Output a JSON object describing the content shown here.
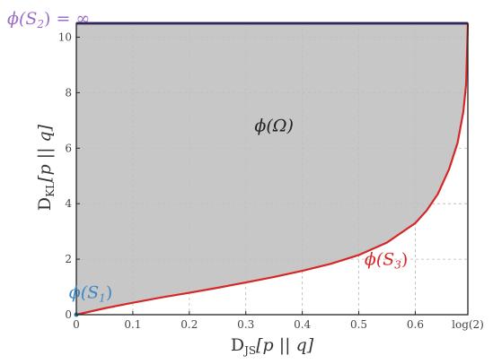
{
  "chart_data": {
    "type": "area",
    "title": "",
    "xlabel": {
      "main": "D",
      "sub": "JS",
      "rest": "[p || q]"
    },
    "ylabel": {
      "main": "D",
      "sub": "KL",
      "rest": "[p || q]"
    },
    "xlim": [
      0,
      0.6931
    ],
    "ylim": [
      0,
      10.5
    ],
    "grid": true,
    "x_ticks": [
      {
        "value": 0,
        "label": "0"
      },
      {
        "value": 0.1,
        "label": "0.1"
      },
      {
        "value": 0.2,
        "label": "0.2"
      },
      {
        "value": 0.3,
        "label": "0.3"
      },
      {
        "value": 0.4,
        "label": "0.4"
      },
      {
        "value": 0.5,
        "label": "0.5"
      },
      {
        "value": 0.6,
        "label": "0.6"
      },
      {
        "value": 0.6931,
        "label": "log(2)"
      }
    ],
    "y_ticks": [
      {
        "value": 0,
        "label": "0"
      },
      {
        "value": 2,
        "label": "2"
      },
      {
        "value": 4,
        "label": "4"
      },
      {
        "value": 6,
        "label": "6"
      },
      {
        "value": 8,
        "label": "8"
      },
      {
        "value": 10,
        "label": "10"
      }
    ],
    "series": [
      {
        "name": "phi(S3) lower boundary",
        "color": "#d62728",
        "x": [
          0,
          0.05,
          0.1,
          0.15,
          0.2,
          0.25,
          0.3,
          0.35,
          0.4,
          0.45,
          0.5,
          0.55,
          0.6,
          0.62,
          0.64,
          0.66,
          0.675,
          0.685,
          0.69,
          0.6931
        ],
        "y": [
          0,
          0.23,
          0.43,
          0.62,
          0.79,
          0.97,
          1.16,
          1.36,
          1.58,
          1.83,
          2.15,
          2.6,
          3.3,
          3.75,
          4.35,
          5.25,
          6.2,
          7.3,
          8.3,
          10.5
        ]
      },
      {
        "name": "phi(S2) upper boundary",
        "color": "#4b3a8f",
        "x": [
          0,
          0.6931
        ],
        "y": [
          10.5,
          10.5
        ]
      }
    ],
    "region": {
      "name": "phi(Omega)",
      "fill": "#bfbfbf"
    },
    "point": {
      "name": "phi(S1)",
      "x": 0,
      "y": 0,
      "color": "#1f77b4"
    },
    "annotations": [
      {
        "text": "ϕ(S",
        "sub": "2",
        "tail": ") = ∞",
        "color": "#9b6fc8",
        "anchor_x": 0,
        "anchor_y": 10.5
      },
      {
        "text": "ϕ(Ω)",
        "sub": "",
        "tail": "",
        "color": "#222222",
        "anchor_x": 0.35,
        "anchor_y": 6.6
      },
      {
        "text": "ϕ(S",
        "sub": "3",
        "tail": ")",
        "color": "#d62728",
        "anchor_x": 0.555,
        "anchor_y": 1.8
      },
      {
        "text": "ϕ(S",
        "sub": "1",
        "tail": ")",
        "color": "#3d86c2",
        "anchor_x": 0.035,
        "anchor_y": 0.6
      }
    ]
  }
}
